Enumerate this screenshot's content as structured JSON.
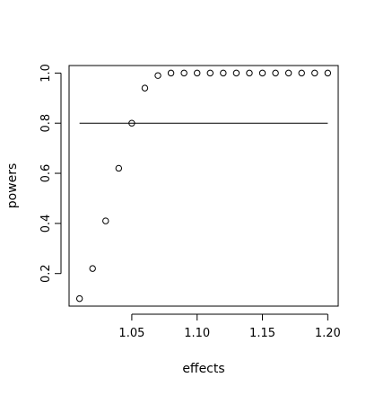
{
  "chart_data": {
    "type": "scatter",
    "xlabel": "effects",
    "ylabel": "powers",
    "xlim": [
      1.002,
      1.208
    ],
    "ylim": [
      0.07,
      1.03
    ],
    "x_ticks": [
      1.05,
      1.1,
      1.15,
      1.2
    ],
    "x_tick_labels": [
      "1.05",
      "1.10",
      "1.15",
      "1.20"
    ],
    "y_ticks": [
      0.2,
      0.4,
      0.6,
      0.8,
      1.0
    ],
    "y_tick_labels": [
      "0.2",
      "0.4",
      "0.6",
      "0.8",
      "1.0"
    ],
    "grid": false,
    "marker": "open-circle",
    "series": [
      {
        "x": [
          1.01,
          1.02,
          1.03,
          1.04,
          1.05,
          1.06,
          1.07,
          1.08,
          1.09,
          1.1,
          1.11,
          1.12,
          1.13,
          1.14,
          1.15,
          1.16,
          1.17,
          1.18,
          1.19,
          1.2
        ],
        "y": [
          0.1,
          0.22,
          0.41,
          0.62,
          0.8,
          0.94,
          0.99,
          1.0,
          1.0,
          1.0,
          1.0,
          1.0,
          1.0,
          1.0,
          1.0,
          1.0,
          1.0,
          1.0,
          1.0,
          1.0
        ]
      }
    ],
    "reference_line": {
      "y": 0.8,
      "x_from": 1.01,
      "x_to": 1.2
    }
  }
}
